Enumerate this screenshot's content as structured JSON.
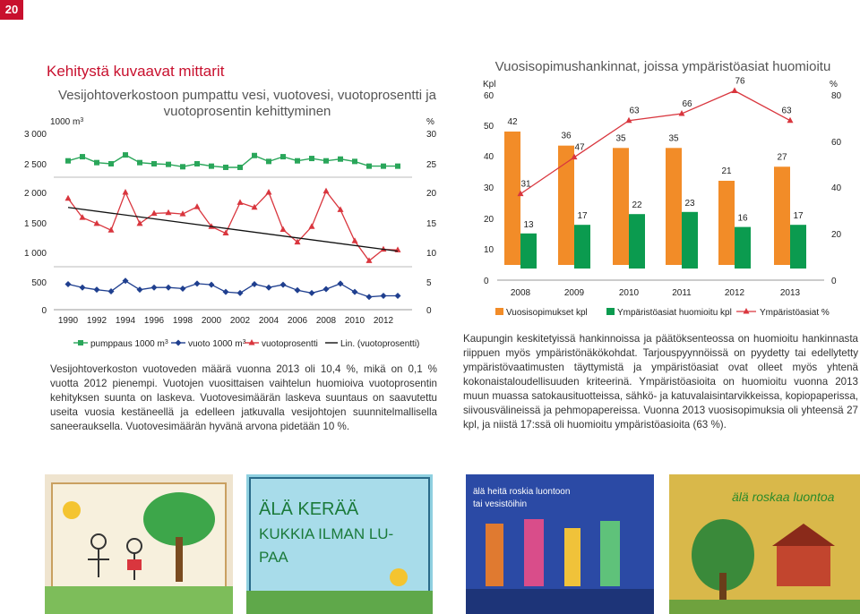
{
  "page_number": "20",
  "section_title": "Kehitystä kuvaavat mittarit",
  "chart1_title_line1": "Vesijohtoverkostoon pumpattu vesi, vuotovesi, vuotoprosentti ja",
  "chart1_title_line2": "vuotoprosentin kehittyminen",
  "chart2_title": "Vuosisopimushankinnat, joissa ympäristöasiat huomioitu",
  "paragraph1": "Vesijohtoverkoston vuotoveden määrä vuonna 2013 oli 10,4 %, mikä on 0,1 % vuotta 2012 pienempi. Vuotojen vuosittaisen vaihtelun huomioiva vuotoprosentin kehityksen suunta on laskeva. Vuotovesimäärän laskeva suuntaus on saavutettu useita vuosia kestäneellä ja edelleen jatkuvalla vesijohtojen suunnitelmallisella saneerauksella. Vuotovesimäärän hyvänä arvona pidetään 10 %.",
  "paragraph2": "Kaupungin keskitetyissä hankinnoissa ja päätöksenteossa on huomioitu hankinnasta riippuen myös ympäristönäkökohdat. Tarjouspyynnöissä on pyydetty tai edellytetty ympäristövaatimusten täyttymistä ja ympäristöasiat ovat olleet myös yhtenä kokonaistaloudellisuuden kriteerinä. Ympäristöasioita on huomioitu vuonna 2013 muun muassa satokausituotteissa, sähkö- ja katuvalaisintarvikkeissa, kopiopaperissa, siivousvälineissä ja pehmopapereissa. Vuonna 2013 vuosisopimuksia oli yhteensä 27 kpl, ja niistä 17:ssä oli huomioitu ympäristöasioita (63 %).",
  "photos": [
    {
      "name": "drawing-children"
    },
    {
      "name": "drawing-ala-keraa",
      "text": "ÄLÄ KERÄÄ KUKKIA ILMAN LUPAA"
    },
    {
      "name": "drawing-ala-heita",
      "text": "älä heitä roskia luontoon tai vesistöihin"
    },
    {
      "name": "drawing-ala-roskaa",
      "text": "älä roskaa luontoa"
    }
  ],
  "colors": {
    "accent": "#c8102e",
    "green": "#2aa65a",
    "red": "#d9363e",
    "blue": "#1f3f8f",
    "orange": "#f28c28",
    "darkgreen": "#0b9b4f"
  },
  "chart_data": [
    {
      "type": "line",
      "title": "Vesijohtoverkostoon pumpattu vesi, vuotovesi, vuotoprosentti ja vuotoprosentin kehittyminen",
      "ylabel_left": "1000 m³",
      "ylabel_right": "%",
      "left_ticks": [
        "3 000",
        "2 500",
        "2 000",
        "1 500",
        "1 000",
        "500",
        "0"
      ],
      "right_ticks": [
        "30",
        "25",
        "20",
        "15",
        "10",
        "5",
        "0"
      ],
      "x_ticks": [
        "1990",
        "1992",
        "1994",
        "1996",
        "1998",
        "2000",
        "2002",
        "2004",
        "2006",
        "2008",
        "2010",
        "2012"
      ],
      "years": [
        1990,
        1991,
        1992,
        1993,
        1994,
        1995,
        1996,
        1997,
        1998,
        1999,
        2000,
        2001,
        2002,
        2003,
        2004,
        2005,
        2006,
        2007,
        2008,
        2009,
        2010,
        2011,
        2012,
        2013
      ],
      "series": [
        {
          "name": "pumppaus 1000 m³",
          "axis": "left",
          "values": [
            2550,
            2620,
            2520,
            2500,
            2650,
            2520,
            2500,
            2490,
            2450,
            2500,
            2460,
            2440,
            2440,
            2640,
            2540,
            2620,
            2550,
            2590,
            2550,
            2580,
            2540,
            2460,
            2460,
            2460
          ]
        },
        {
          "name": "vuoto 1000 m³",
          "axis": "left",
          "values": [
            460,
            400,
            360,
            330,
            520,
            360,
            400,
            400,
            380,
            470,
            450,
            320,
            300,
            460,
            400,
            450,
            350,
            300,
            370,
            470,
            320,
            230,
            250,
            250
          ]
        },
        {
          "name": "vuotoprosentti",
          "axis": "right",
          "values": [
            19.0,
            15.8,
            14.8,
            13.7,
            20.0,
            14.8,
            16.5,
            16.6,
            16.4,
            17.6,
            14.3,
            13.2,
            18.3,
            17.5,
            20.0,
            13.8,
            11.7,
            14.3,
            20.2,
            17.1,
            11.9,
            8.6,
            10.5,
            10.4
          ]
        },
        {
          "name": "Lin. (vuotoprosentti)",
          "axis": "right",
          "values": [
            17.5,
            10.2
          ],
          "trend": true
        }
      ],
      "ylim_left": [
        0,
        3000
      ],
      "ylim_right": [
        0,
        30
      ]
    },
    {
      "type": "bar",
      "title": "Vuosisopimushankinnat, joissa ympäristöasiat huomioitu",
      "ylabel_left": "Kpl",
      "ylabel_right": "%",
      "left_ticks": [
        "60",
        "50",
        "40",
        "30",
        "20",
        "10",
        "0"
      ],
      "right_ticks": [
        "80",
        "60",
        "40",
        "20",
        "0"
      ],
      "categories": [
        "2008",
        "2009",
        "2010",
        "2011",
        "2012",
        "2013"
      ],
      "series": [
        {
          "name": "Vuosisopimukset kpl",
          "values": [
            42,
            36,
            35,
            35,
            21,
            27
          ]
        },
        {
          "name": "Ympäristöasiat huomioitu kpl",
          "values": [
            13,
            17,
            22,
            23,
            16,
            17
          ]
        },
        {
          "name": "Ympäristöasiat %",
          "axis": "right",
          "values": [
            31,
            47,
            63,
            66,
            76,
            63
          ]
        }
      ],
      "ylim_left": [
        0,
        60
      ],
      "ylim_right": [
        0,
        80
      ]
    }
  ]
}
